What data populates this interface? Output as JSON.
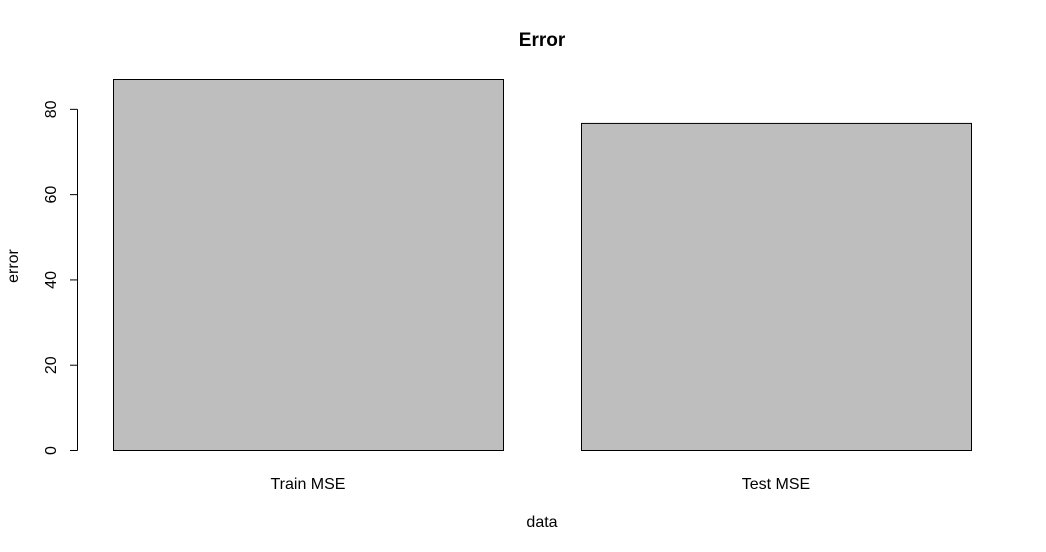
{
  "chart_data": {
    "type": "bar",
    "title": "Error",
    "xlabel": "data",
    "ylabel": "error",
    "categories": [
      "Train MSE",
      "Test MSE"
    ],
    "values": [
      87,
      76.7
    ],
    "ylim": [
      0,
      87
    ],
    "yticks": [
      0,
      20,
      40,
      60,
      80
    ],
    "ytick_labels": [
      "0",
      "20",
      "40",
      "60",
      "80"
    ],
    "bar_color": "#bebebe",
    "grid": false,
    "legend": "none"
  }
}
